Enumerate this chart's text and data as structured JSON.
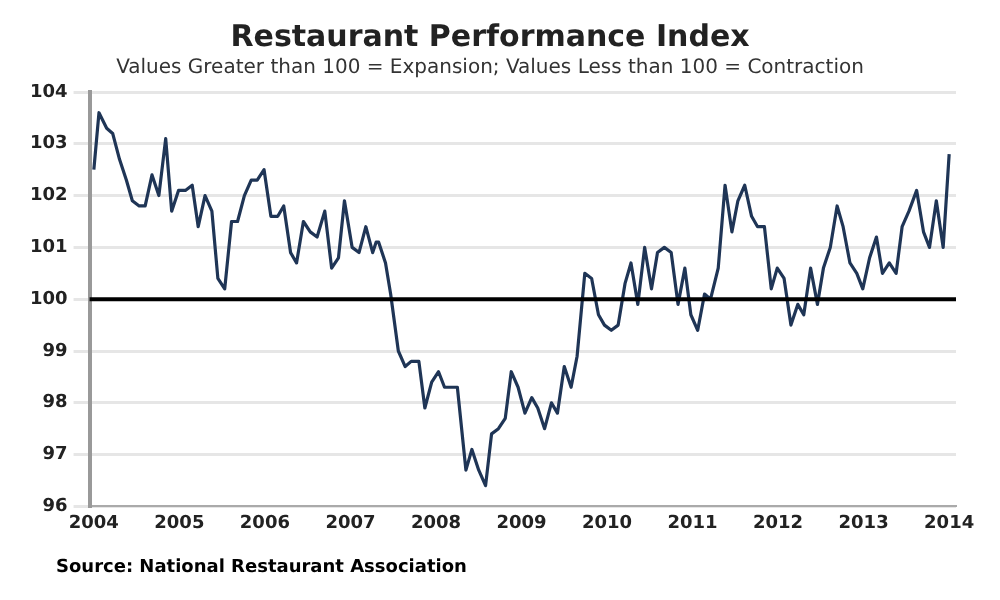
{
  "chart_data": {
    "type": "line",
    "title": "Restaurant Performance Index",
    "subtitle": "Values Greater than 100 = Expansion; Values Less than 100 = Contraction",
    "x": [
      2004.0,
      2004.06,
      2004.15,
      2004.22,
      2004.3,
      2004.38,
      2004.45,
      2004.53,
      2004.6,
      2004.68,
      2004.76,
      2004.84,
      2004.91,
      2004.99,
      2005.07,
      2005.15,
      2005.22,
      2005.3,
      2005.38,
      2005.45,
      2005.53,
      2005.61,
      2005.68,
      2005.76,
      2005.84,
      2005.91,
      2005.99,
      2006.07,
      2006.15,
      2006.22,
      2006.3,
      2006.37,
      2006.45,
      2006.53,
      2006.61,
      2006.7,
      2006.78,
      2006.86,
      2006.93,
      2007.02,
      2007.1,
      2007.18,
      2007.26,
      2007.3,
      2007.33,
      2007.41,
      2007.47,
      2007.56,
      2007.64,
      2007.71,
      2007.8,
      2007.87,
      2007.95,
      2008.03,
      2008.1,
      2008.18,
      2008.25,
      2008.35,
      2008.42,
      2008.5,
      2008.58,
      2008.65,
      2008.73,
      2008.81,
      2008.88,
      2008.96,
      2009.04,
      2009.12,
      2009.19,
      2009.27,
      2009.35,
      2009.42,
      2009.5,
      2009.58,
      2009.65,
      2009.74,
      2009.82,
      2009.9,
      2009.97,
      2010.05,
      2010.13,
      2010.21,
      2010.28,
      2010.36,
      2010.44,
      2010.52,
      2010.59,
      2010.67,
      2010.75,
      2010.83,
      2010.91,
      2010.98,
      2011.06,
      2011.14,
      2011.21,
      2011.3,
      2011.38,
      2011.46,
      2011.53,
      2011.61,
      2011.69,
      2011.76,
      2011.84,
      2011.92,
      2011.99,
      2012.07,
      2012.15,
      2012.23,
      2012.3,
      2012.38,
      2012.46,
      2012.53,
      2012.61,
      2012.69,
      2012.76,
      2012.84,
      2012.92,
      2012.99,
      2013.07,
      2013.15,
      2013.22,
      2013.3,
      2013.38,
      2013.45,
      2013.53,
      2013.62,
      2013.7,
      2013.77,
      2013.85,
      2013.93,
      2014.0
    ],
    "series": [
      {
        "color": "#1f3556",
        "values": [
          102.5,
          103.6,
          103.3,
          103.2,
          102.7,
          102.3,
          101.9,
          101.8,
          101.8,
          102.4,
          102.0,
          103.1,
          101.7,
          102.1,
          102.1,
          102.2,
          101.4,
          102.0,
          101.7,
          100.4,
          100.2,
          101.5,
          101.5,
          102.0,
          102.3,
          102.3,
          102.5,
          101.6,
          101.6,
          101.8,
          100.9,
          100.7,
          101.5,
          101.3,
          101.2,
          101.7,
          100.6,
          100.8,
          101.9,
          101.0,
          100.9,
          101.4,
          100.9,
          101.1,
          101.1,
          100.7,
          100.1,
          99.0,
          98.7,
          98.8,
          98.8,
          97.9,
          98.4,
          98.6,
          98.3,
          98.3,
          98.3,
          96.7,
          97.1,
          96.7,
          96.4,
          97.4,
          97.5,
          97.7,
          98.6,
          98.3,
          97.8,
          98.1,
          97.9,
          97.5,
          98.0,
          97.8,
          98.7,
          98.3,
          98.9,
          100.5,
          100.4,
          99.7,
          99.5,
          99.4,
          99.5,
          100.3,
          100.7,
          99.9,
          101.0,
          100.2,
          100.9,
          101.0,
          100.9,
          99.9,
          100.6,
          99.7,
          99.4,
          100.1,
          100.0,
          100.6,
          102.2,
          101.3,
          101.9,
          102.2,
          101.6,
          101.4,
          101.4,
          100.2,
          100.6,
          100.4,
          99.5,
          99.9,
          99.7,
          100.6,
          99.9,
          100.6,
          101.0,
          101.8,
          101.4,
          100.7,
          100.5,
          100.2,
          100.8,
          101.2,
          100.5,
          100.7,
          100.5,
          101.4,
          101.7,
          102.1,
          101.3,
          101.0,
          101.9,
          101.0,
          102.8
        ]
      }
    ],
    "xlim": [
      2003.95,
      2014.08
    ],
    "xticks": [
      2004,
      2005,
      2006,
      2007,
      2008,
      2009,
      2010,
      2011,
      2012,
      2013,
      2014
    ],
    "ylim": [
      96,
      104
    ],
    "yticks": [
      96,
      97,
      98,
      99,
      100,
      101,
      102,
      103,
      104
    ],
    "grid": "y",
    "legend": false,
    "marker": "none",
    "line_style": "solid",
    "ref_lines": [
      {
        "axis": "y",
        "value": 100,
        "color": "#000000"
      }
    ],
    "annotations": [
      "Source: National Restaurant Association"
    ]
  }
}
